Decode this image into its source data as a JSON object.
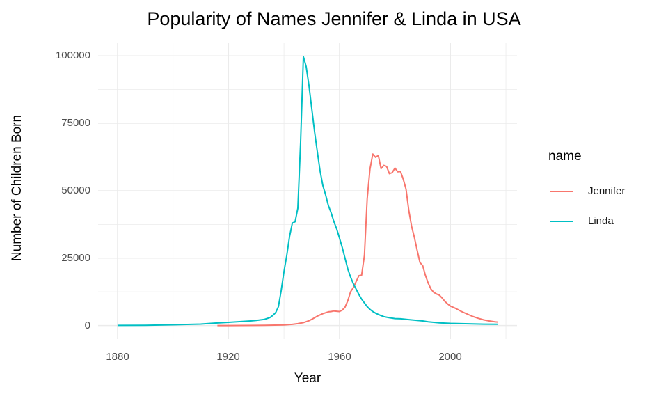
{
  "chart_data": {
    "type": "line",
    "title": "Popularity of Names Jennifer & Linda in USA",
    "xlabel": "Year",
    "ylabel": "Number of Children Born",
    "x_ticks": [
      1880,
      1920,
      1960,
      2000
    ],
    "x_tick_labels": [
      "1880",
      "1920",
      "1960",
      "2000"
    ],
    "x_minor_ticks": [
      1900,
      1940,
      1980,
      2020
    ],
    "y_ticks": [
      0,
      25000,
      50000,
      75000,
      100000
    ],
    "y_tick_labels": [
      "0",
      "25000",
      "50000",
      "75000",
      "100000"
    ],
    "y_minor_ticks": [
      12500,
      37500,
      62500,
      87500
    ],
    "xlim": [
      1873,
      2024
    ],
    "ylim": [
      -5000,
      104700
    ],
    "grid": true,
    "background": "#FFFFFF",
    "grid_color": "#EBEBEB",
    "tick_label_color": "#4D4D4D",
    "text_color": "#000000",
    "legend": {
      "title": "name",
      "position": "right",
      "entries": [
        {
          "label": "Jennifer",
          "color": "#F8766D"
        },
        {
          "label": "Linda",
          "color": "#00BFC4"
        }
      ]
    },
    "series": [
      {
        "name": "Jennifer",
        "color": "#F8766D",
        "points": [
          [
            1916,
            10
          ],
          [
            1920,
            20
          ],
          [
            1925,
            40
          ],
          [
            1930,
            70
          ],
          [
            1935,
            130
          ],
          [
            1940,
            250
          ],
          [
            1943,
            450
          ],
          [
            1945,
            700
          ],
          [
            1947,
            1100
          ],
          [
            1949,
            1800
          ],
          [
            1950,
            2300
          ],
          [
            1952,
            3500
          ],
          [
            1954,
            4400
          ],
          [
            1956,
            5100
          ],
          [
            1957,
            5200
          ],
          [
            1958,
            5400
          ],
          [
            1959,
            5300
          ],
          [
            1960,
            5200
          ],
          [
            1961,
            5700
          ],
          [
            1962,
            6800
          ],
          [
            1963,
            9200
          ],
          [
            1964,
            12500
          ],
          [
            1965,
            14100
          ],
          [
            1966,
            16300
          ],
          [
            1967,
            18500
          ],
          [
            1968,
            18700
          ],
          [
            1969,
            26000
          ],
          [
            1970,
            47000
          ],
          [
            1971,
            58000
          ],
          [
            1972,
            63600
          ],
          [
            1973,
            62400
          ],
          [
            1974,
            63100
          ],
          [
            1975,
            58200
          ],
          [
            1976,
            59400
          ],
          [
            1977,
            59000
          ],
          [
            1978,
            56300
          ],
          [
            1979,
            56700
          ],
          [
            1980,
            58400
          ],
          [
            1981,
            57000
          ],
          [
            1982,
            57100
          ],
          [
            1983,
            54300
          ],
          [
            1984,
            50600
          ],
          [
            1985,
            42700
          ],
          [
            1986,
            36800
          ],
          [
            1987,
            32700
          ],
          [
            1988,
            27900
          ],
          [
            1989,
            23400
          ],
          [
            1990,
            22200
          ],
          [
            1991,
            18600
          ],
          [
            1992,
            15700
          ],
          [
            1993,
            13500
          ],
          [
            1994,
            12300
          ],
          [
            1995,
            11700
          ],
          [
            1996,
            11300
          ],
          [
            1997,
            10200
          ],
          [
            1998,
            9000
          ],
          [
            1999,
            8000
          ],
          [
            2000,
            7200
          ],
          [
            2002,
            6300
          ],
          [
            2004,
            5200
          ],
          [
            2006,
            4300
          ],
          [
            2008,
            3400
          ],
          [
            2010,
            2700
          ],
          [
            2012,
            2100
          ],
          [
            2014,
            1700
          ],
          [
            2016,
            1400
          ],
          [
            2017,
            1300
          ]
        ]
      },
      {
        "name": "Linda",
        "color": "#00BFC4",
        "points": [
          [
            1880,
            60
          ],
          [
            1890,
            120
          ],
          [
            1900,
            300
          ],
          [
            1910,
            550
          ],
          [
            1915,
            900
          ],
          [
            1920,
            1200
          ],
          [
            1925,
            1500
          ],
          [
            1928,
            1700
          ],
          [
            1930,
            1900
          ],
          [
            1933,
            2300
          ],
          [
            1935,
            3000
          ],
          [
            1936,
            3800
          ],
          [
            1937,
            4800
          ],
          [
            1938,
            7000
          ],
          [
            1939,
            13000
          ],
          [
            1940,
            20000
          ],
          [
            1941,
            26000
          ],
          [
            1942,
            33000
          ],
          [
            1943,
            38000
          ],
          [
            1944,
            38500
          ],
          [
            1945,
            43500
          ],
          [
            1946,
            68000
          ],
          [
            1947,
            99700
          ],
          [
            1948,
            96000
          ],
          [
            1949,
            89000
          ],
          [
            1950,
            80500
          ],
          [
            1951,
            72000
          ],
          [
            1952,
            64500
          ],
          [
            1953,
            57500
          ],
          [
            1954,
            52000
          ],
          [
            1955,
            48500
          ],
          [
            1956,
            44500
          ],
          [
            1957,
            41800
          ],
          [
            1958,
            38500
          ],
          [
            1959,
            35800
          ],
          [
            1960,
            32500
          ],
          [
            1961,
            29000
          ],
          [
            1962,
            25000
          ],
          [
            1963,
            21000
          ],
          [
            1964,
            18000
          ],
          [
            1965,
            15500
          ],
          [
            1966,
            13500
          ],
          [
            1967,
            11500
          ],
          [
            1968,
            9800
          ],
          [
            1969,
            8400
          ],
          [
            1970,
            7000
          ],
          [
            1971,
            6000
          ],
          [
            1972,
            5200
          ],
          [
            1973,
            4600
          ],
          [
            1974,
            4100
          ],
          [
            1975,
            3700
          ],
          [
            1976,
            3300
          ],
          [
            1977,
            3100
          ],
          [
            1978,
            2900
          ],
          [
            1980,
            2600
          ],
          [
            1982,
            2500
          ],
          [
            1985,
            2200
          ],
          [
            1988,
            1900
          ],
          [
            1990,
            1700
          ],
          [
            1992,
            1400
          ],
          [
            1994,
            1200
          ],
          [
            1996,
            1000
          ],
          [
            1998,
            900
          ],
          [
            2000,
            800
          ],
          [
            2004,
            700
          ],
          [
            2008,
            600
          ],
          [
            2012,
            520
          ],
          [
            2017,
            480
          ]
        ]
      }
    ]
  }
}
